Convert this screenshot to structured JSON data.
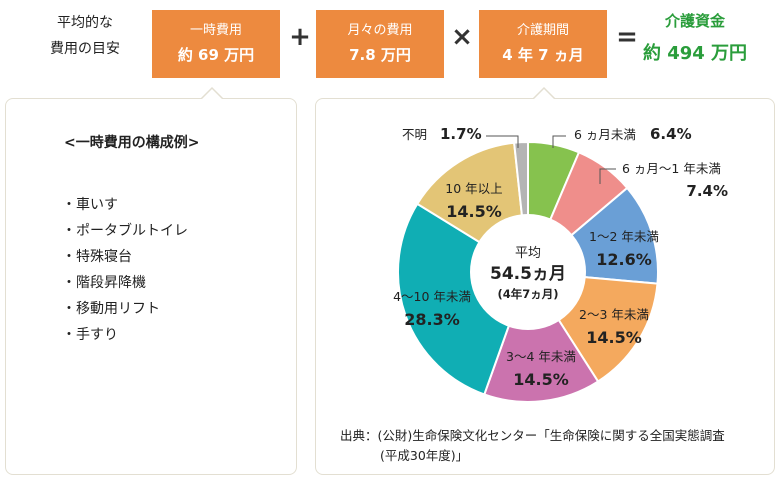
{
  "header": {
    "label_line1": "平均的な",
    "label_line2": "費用の目安",
    "box1_title": "一時費用",
    "box1_value": "約 69 万円",
    "plus": "+",
    "box2_title": "月々の費用",
    "box2_value": "7.8 万円",
    "times": "×",
    "box3_title": "介護期間",
    "box3_value": "4 年 7 ヵ月",
    "equals": "=",
    "result_title": "介護資金",
    "result_value": "約 494 万円"
  },
  "left_panel": {
    "title": "<一時費用の構成例>",
    "items": [
      "・車いす",
      "・ポータブルトイレ",
      "・特殊寝台",
      "・階段昇降機",
      "・移動用リフト",
      "・手すり"
    ]
  },
  "colors": {
    "orange": "#ed8a3f",
    "green_text": "#2a9d3b"
  },
  "chart_data": {
    "type": "pie",
    "center_line1": "平均",
    "center_line2": "54.5ヵ月",
    "center_line3": "(4年7ヵ月)",
    "slices": [
      {
        "label": "6 ヵ月未満",
        "value": 6.4,
        "value_text": "6.4%",
        "color": "#86c24e"
      },
      {
        "label": "6 ヵ月〜1 年未満",
        "value": 7.4,
        "value_text": "7.4%",
        "color": "#ef8e8b"
      },
      {
        "label": "1〜2 年未満",
        "value": 12.6,
        "value_text": "12.6%",
        "color": "#6a9fd6"
      },
      {
        "label": "2〜3 年未満",
        "value": 14.5,
        "value_text": "14.5%",
        "color": "#f4a95e"
      },
      {
        "label": "3〜4 年未満",
        "value": 14.5,
        "value_text": "14.5%",
        "color": "#cb73ae"
      },
      {
        "label": "4〜10 年未満",
        "value": 28.3,
        "value_text": "28.3%",
        "color": "#10aeb4"
      },
      {
        "label": "10 年以上",
        "value": 14.5,
        "value_text": "14.5%",
        "color": "#e3c576"
      },
      {
        "label": "不明",
        "value": 1.7,
        "value_text": "1.7%",
        "color": "#b4b4b4"
      }
    ]
  },
  "source": {
    "line1": "出典：(公財)生命保険文化センター「生命保険に関する全国実態調査",
    "line2": "(平成30年度)」"
  }
}
